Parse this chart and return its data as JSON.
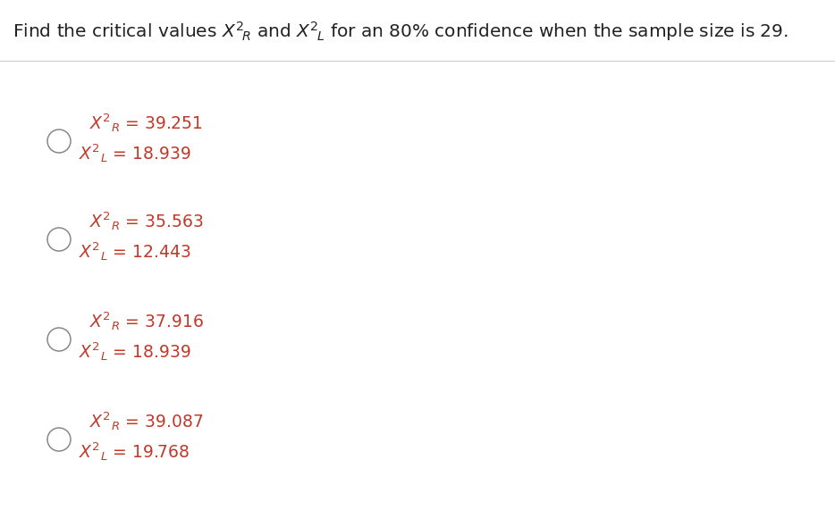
{
  "background_color": "#ffffff",
  "title_color": "#222222",
  "title_fontsize": 14.5,
  "text_color": "#c0392b",
  "circle_edge_color": "#888888",
  "line_color": "#cccccc",
  "options": [
    {
      "xr_val": "39.251",
      "xl_val": "18.939"
    },
    {
      "xr_val": "35.563",
      "xl_val": "12.443"
    },
    {
      "xr_val": "37.916",
      "xl_val": "18.939"
    },
    {
      "xr_val": "39.087",
      "xl_val": "19.768"
    }
  ],
  "fig_width": 9.34,
  "fig_height": 5.9,
  "dpi": 100
}
